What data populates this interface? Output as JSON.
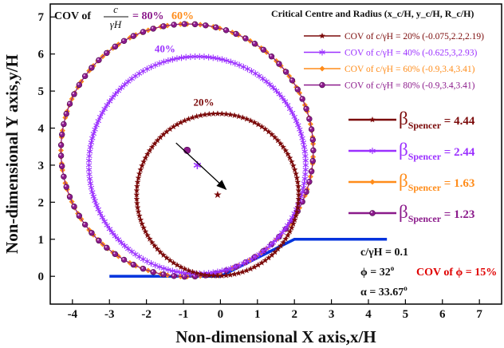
{
  "chart_data": {
    "type": "line",
    "xlabel": "Non-dimensional X axis,x/H",
    "ylabel": "Non-dimensional Y axis,y/H",
    "xlim": [
      -4.6,
      7.6
    ],
    "ylim": [
      -0.75,
      7.35
    ],
    "xticks": [
      -4,
      -3,
      -2,
      -1,
      0,
      1,
      2,
      3,
      4,
      5,
      6,
      7
    ],
    "yticks": [
      0,
      1,
      2,
      3,
      4,
      5,
      6,
      7
    ],
    "grid": false,
    "top_left_note": {
      "prefix": "COV of",
      "numerator": "c",
      "denominator": "γH",
      "eq_80": "= 80%",
      "label_60": "60%"
    },
    "legend_title": "Critical Centre and Radius (x_c/H, y_c/H, R_c/H)",
    "legend_placement": "top-right",
    "series": [
      {
        "name": "COV of c/γH = 20% (-0.075,2.2,2.19)",
        "center": [
          -0.075,
          2.2
        ],
        "radius": 2.19,
        "color": "#7b0a0a",
        "marker": "star",
        "beta": "4.44",
        "curve_label": "20%"
      },
      {
        "name": "COV of c/γH = 40% (-0.625,3,2.93)",
        "center": [
          -0.625,
          3.0
        ],
        "radius": 2.93,
        "color": "#9b30ff",
        "marker": "asterisk",
        "beta": "2.44",
        "curve_label": "40%"
      },
      {
        "name": "COV of c/γH = 60% (-0.9,3.4,3.41)",
        "center": [
          -0.9,
          3.4
        ],
        "radius": 3.41,
        "color": "#ff8c1a",
        "marker": "diamond",
        "beta": "1.63",
        "curve_label": ""
      },
      {
        "name": "COV of c/γH = 80% (-0.9,3.4,3.41)",
        "center": [
          -0.9,
          3.4
        ],
        "radius": 3.41,
        "color": "#8b1a8b",
        "marker": "sphere",
        "beta": "1.23",
        "curve_label": ""
      }
    ],
    "slope": {
      "points": [
        [
          -3,
          0
        ],
        [
          0,
          0
        ],
        [
          2,
          1
        ],
        [
          4.5,
          1
        ]
      ],
      "color": "#0033dd"
    },
    "beta_symbol": "β",
    "beta_subscript": "Spencer",
    "parameters": {
      "c_gamma_h": "c/γH = 0.1",
      "phi": "ϕ = 32",
      "phi_cov": "COV of ϕ = 15%",
      "alpha": "α = 33.67",
      "degree": "o"
    },
    "arrow": {
      "from": [
        -1.2,
        3.6
      ],
      "to": [
        0.15,
        2.35
      ],
      "color": "#000000"
    }
  }
}
